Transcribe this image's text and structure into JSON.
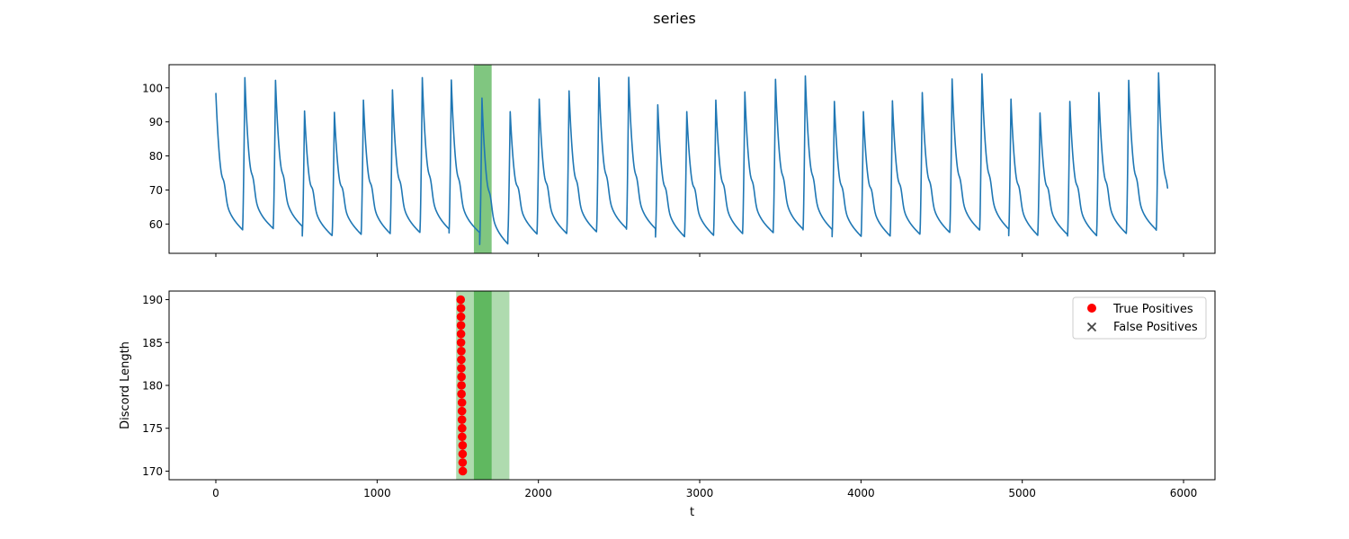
{
  "chart_data": [
    {
      "type": "line",
      "title": "series",
      "xlabel": "",
      "ylabel": "",
      "xlim": [
        -290,
        6195
      ],
      "ylim": [
        51.4,
        106.8
      ],
      "xticks": [
        0,
        1000,
        2000,
        3000,
        4000,
        5000,
        6000
      ],
      "yticks": [
        60,
        70,
        80,
        90,
        100
      ],
      "x_tick_labels_visible": false,
      "highlight_spans": [
        {
          "x0": 1600,
          "x1": 1710,
          "color": "#2ca02c",
          "alpha": 0.6
        }
      ],
      "series": [
        {
          "color": "#1f77b4",
          "peaks": [
            {
              "t": 0,
              "peak": 98.5,
              "trough": 58.2
            },
            {
              "t": 180,
              "peak": 103.0,
              "trough": 58.6
            },
            {
              "t": 370,
              "peak": 102.2,
              "trough": 59.2
            },
            {
              "t": 550,
              "peak": 93.2,
              "trough": 56.5
            },
            {
              "t": 735,
              "peak": 92.8,
              "trough": 56.9
            },
            {
              "t": 915,
              "peak": 96.4,
              "trough": 57.1
            },
            {
              "t": 1095,
              "peak": 99.4,
              "trough": 57.4
            },
            {
              "t": 1280,
              "peak": 103.0,
              "trough": 58.4
            },
            {
              "t": 1460,
              "peak": 102.3,
              "trough": 57.4
            },
            {
              "t": 1650,
              "peak": 97.0,
              "trough": 54.0
            },
            {
              "t": 1825,
              "peak": 93.0,
              "trough": 57.0
            },
            {
              "t": 2005,
              "peak": 96.7,
              "trough": 57.1
            },
            {
              "t": 2190,
              "peak": 99.1,
              "trough": 57.6
            },
            {
              "t": 2375,
              "peak": 103.0,
              "trough": 58.6
            },
            {
              "t": 2560,
              "peak": 103.1,
              "trough": 58.5
            },
            {
              "t": 2740,
              "peak": 95.0,
              "trough": 56.2
            },
            {
              "t": 2920,
              "peak": 93.0,
              "trough": 56.6
            },
            {
              "t": 3100,
              "peak": 96.4,
              "trough": 57.1
            },
            {
              "t": 3280,
              "peak": 98.8,
              "trough": 57.4
            },
            {
              "t": 3470,
              "peak": 102.5,
              "trough": 58.4
            },
            {
              "t": 3655,
              "peak": 103.5,
              "trough": 58.3
            },
            {
              "t": 3835,
              "peak": 96.0,
              "trough": 56.3
            },
            {
              "t": 4015,
              "peak": 93.0,
              "trough": 56.4
            },
            {
              "t": 4195,
              "peak": 96.2,
              "trough": 56.9
            },
            {
              "t": 4380,
              "peak": 98.6,
              "trough": 57.4
            },
            {
              "t": 4565,
              "peak": 102.6,
              "trough": 58.1
            },
            {
              "t": 4750,
              "peak": 104.1,
              "trough": 58.4
            },
            {
              "t": 4930,
              "peak": 96.7,
              "trough": 56.6
            },
            {
              "t": 5110,
              "peak": 92.6,
              "trough": 56.8
            },
            {
              "t": 5295,
              "peak": 96.0,
              "trough": 56.5
            },
            {
              "t": 5475,
              "peak": 98.6,
              "trough": 57.1
            },
            {
              "t": 5660,
              "peak": 102.2,
              "trough": 58.2
            },
            {
              "t": 5845,
              "peak": 104.4,
              "trough": 58.2
            }
          ],
          "end": {
            "t": 5905,
            "value": 70.6
          }
        }
      ]
    },
    {
      "type": "scatter",
      "xlabel": "t",
      "ylabel": "Discord Length",
      "xlim": [
        -290,
        6195
      ],
      "ylim": [
        169,
        191
      ],
      "xticks": [
        0,
        1000,
        2000,
        3000,
        4000,
        5000,
        6000
      ],
      "yticks": [
        170,
        175,
        180,
        185,
        190
      ],
      "legend_position": "top-right",
      "highlight_spans": [
        {
          "x0": 1490,
          "x1": 1820,
          "color": "#2ca02c",
          "alpha": 0.38
        },
        {
          "x0": 1600,
          "x1": 1710,
          "color": "#2ca02c",
          "alpha": 0.6
        }
      ],
      "series": [
        {
          "name": "True Positives",
          "marker": "circle",
          "color": "#ff0000",
          "points": [
            {
              "x": 1531,
              "y": 170
            },
            {
              "x": 1530,
              "y": 171
            },
            {
              "x": 1530,
              "y": 172
            },
            {
              "x": 1530,
              "y": 173
            },
            {
              "x": 1527,
              "y": 174
            },
            {
              "x": 1527,
              "y": 175
            },
            {
              "x": 1526,
              "y": 176
            },
            {
              "x": 1526,
              "y": 177
            },
            {
              "x": 1526,
              "y": 178
            },
            {
              "x": 1523,
              "y": 179
            },
            {
              "x": 1523,
              "y": 180
            },
            {
              "x": 1523,
              "y": 181
            },
            {
              "x": 1522,
              "y": 182
            },
            {
              "x": 1522,
              "y": 183
            },
            {
              "x": 1522,
              "y": 184
            },
            {
              "x": 1520,
              "y": 185
            },
            {
              "x": 1520,
              "y": 186
            },
            {
              "x": 1520,
              "y": 187
            },
            {
              "x": 1520,
              "y": 188
            },
            {
              "x": 1520,
              "y": 189
            },
            {
              "x": 1518,
              "y": 190
            }
          ]
        },
        {
          "name": "False Positives",
          "marker": "x",
          "color": "#444444",
          "points": []
        }
      ]
    }
  ]
}
